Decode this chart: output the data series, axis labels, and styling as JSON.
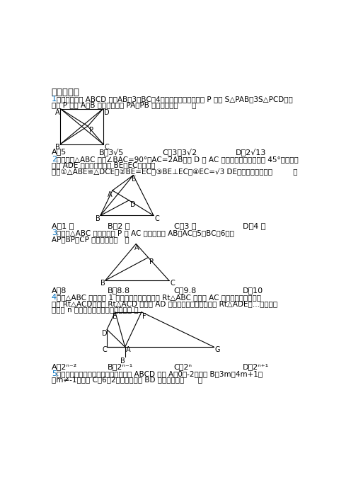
{
  "bg_color": "#ffffff",
  "blue_color": "#0070C0",
  "section_title": "一、选择题",
  "q1_line1": "如图，在矩形 ABCD 中，AB＝3，BC＝4，在矩形内部有一动点 P 满足 S△PAB＝3S△PCD，则",
  "q1_line2": "动点 P 到点 A、B 两点距离之和 PA＋PB 的最小值为（      ）",
  "q1_ans_A": "A．5",
  "q1_ans_B": "B．3",
  "q1_ans_B2": "5",
  "q1_ans_C": "C．3＋3",
  "q1_ans_C2": "2",
  "q1_ans_D": "D．2",
  "q1_ans_D2": "13",
  "q2_line1": "如图，在△ABC 中，∠BAC=90°，AC=2AB，点 D 是 AC 的中点，将一块锐角为 45°的直角三",
  "q2_line2": "角板 ADE 如图放置，连接 BE，EC，下列判",
  "q2_line3": "断：①△ABE≌△DCE；②BE=EC；③BE⊥EC；④EC=√3 DE，其中正确的有（         ）",
  "q2_ans_A": "A．1 个",
  "q2_ans_B": "B．2 个",
  "q2_ans_C": "C．3 个",
  "q2_ans_D": "D．4 个",
  "q3_line1": "如图，△ABC 中，有一点 P 在 AC 上移动，若 AB＝AC＝5，BC＝6，则",
  "q3_line2": "AP＋BP＋CP 的最小值为（   ）",
  "q3_ans_A": "A．8",
  "q3_ans_B": "B．8.8",
  "q3_ans_C": "C．9.8",
  "q3_ans_D": "D．10",
  "q4_line1": "已知△ABC 是腰长为 1 的等腰直角三角形，以 Rt△ABC 的斜边 AC 为直角边，面第二个",
  "q4_line2": "等腰 Rt△ACD，再以 Rt△ACD 的斜边 AD 为直角边，面第三个等腰 Rt△ADE，…，依此类",
  "q4_line3": "推，第 n 个等腰直角三角形的面积是［ ］",
  "q4_ans_A": "A．2ⁿ⁻²",
  "q4_ans_B": "B．2ⁿ⁻¹",
  "q4_ans_C": "C．2ⁿ",
  "q4_ans_D": "D．2ⁿ⁺¹",
  "q5_line1": "在平面直角坐标系中，已知平行四边形 ABCD 的点 A（0，-2），点 B（3m，4m+1）",
  "q5_line2": "（m≠-1），点 C（6，2），则对角线 BD 的最小值是（      ）"
}
